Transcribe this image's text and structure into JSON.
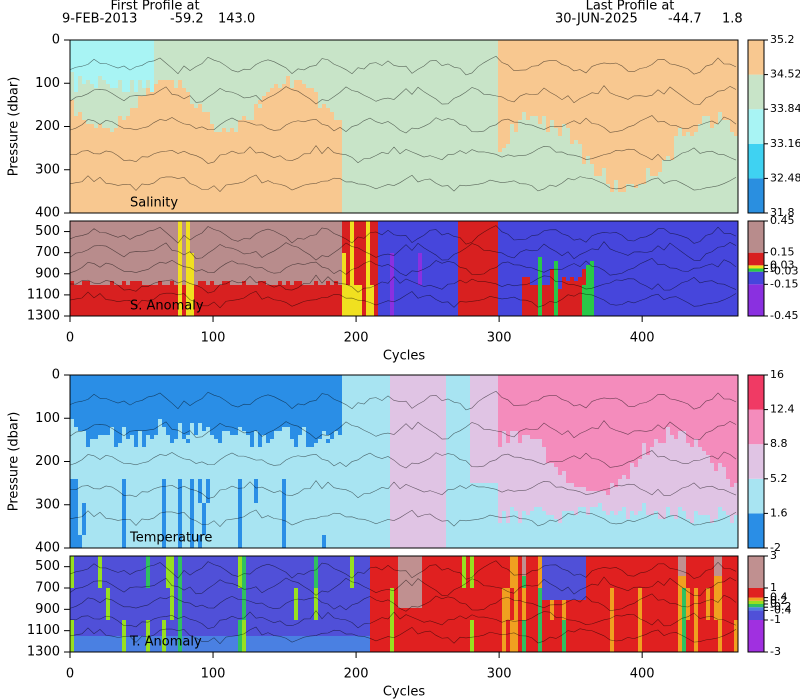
{
  "header": {
    "first_label": "First Profile at",
    "first_date": "9-FEB-2013",
    "first_lat": "-59.2",
    "first_lon": "143.0",
    "last_label": "Last Profile at",
    "last_date": "30-JUN-2025",
    "last_lat": "-44.7",
    "last_lon": "1.8"
  },
  "chart_data": [
    {
      "type": "contour",
      "label": "Salinity",
      "ylabel": "Pressure (dbar)",
      "xlim": [
        0,
        467
      ],
      "ylim": [
        0,
        400
      ],
      "y_inverted": true,
      "yticks": [
        0,
        100,
        200,
        300,
        400
      ],
      "levels": [
        31.8,
        32.48,
        33.16,
        33.84,
        34.52,
        35.2
      ],
      "colors": [
        "#2a8fe0",
        "#3fd2f2",
        "#a8f4f4",
        "#c8e4c8",
        "#f8c890"
      ]
    },
    {
      "type": "contour",
      "label": "S. Anomaly",
      "xlabel": "Cycles",
      "xlim": [
        0,
        467
      ],
      "ylim": [
        400,
        1300
      ],
      "y_inverted": true,
      "xticks": [
        0,
        100,
        200,
        300,
        400
      ],
      "yticks": [
        500,
        700,
        900,
        1100,
        1300
      ],
      "levels": [
        -0.45,
        -0.15,
        -0.03,
        0,
        0.03,
        0.15,
        0.45
      ],
      "colors": [
        "#8a30e0",
        "#4646dc",
        "#28c848",
        "#f0e020",
        "#d82020",
        "#b88c8c"
      ]
    },
    {
      "type": "contour",
      "label": "Temperature",
      "ylabel": "Pressure (dbar)",
      "xlim": [
        0,
        467
      ],
      "ylim": [
        0,
        400
      ],
      "y_inverted": true,
      "yticks": [
        0,
        100,
        200,
        300,
        400
      ],
      "levels": [
        -2,
        1.6,
        5.2,
        8.8,
        12.4,
        16
      ],
      "colors": [
        "#2a8ee6",
        "#a8e4f2",
        "#e0c4e4",
        "#f48cbc",
        "#f03a64"
      ]
    },
    {
      "type": "contour",
      "label": "T. Anomaly",
      "xlabel": "Cycles",
      "xlim": [
        0,
        467
      ],
      "ylim": [
        400,
        1300
      ],
      "y_inverted": true,
      "xticks": [
        0,
        100,
        200,
        300,
        400
      ],
      "yticks": [
        500,
        700,
        900,
        1100,
        1300
      ],
      "levels": [
        -3,
        -1,
        -0.4,
        -0.2,
        0,
        0.2,
        0.4,
        1,
        3
      ],
      "colors": [
        "#a030e0",
        "#5050d8",
        "#4a80e2",
        "#30c060",
        "#98e020",
        "#f0a020",
        "#e02020",
        "#c09090"
      ]
    }
  ]
}
